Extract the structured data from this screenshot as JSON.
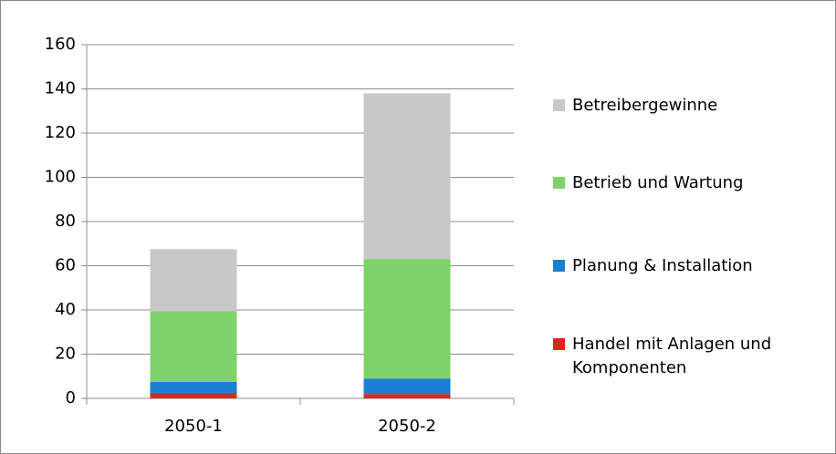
{
  "chart_data": {
    "type": "stacked_bar",
    "categories": [
      "2050-1",
      "2050-2"
    ],
    "series": [
      {
        "name": "Handel mit Anlagen und Komponenten",
        "color": "#d42a1a",
        "values": [
          2.5,
          2
        ]
      },
      {
        "name": "Planung & Installation",
        "color": "#1a7fd0",
        "values": [
          5,
          7
        ]
      },
      {
        "name": "Betrieb und Wartung",
        "color": "#7dd36a",
        "values": [
          32,
          54
        ]
      },
      {
        "name": "Betreibergewinne",
        "color": "#c8c8c8",
        "values": [
          28,
          75
        ]
      }
    ],
    "ylim": [
      0,
      160
    ],
    "yticks": [
      0,
      20,
      40,
      60,
      80,
      100,
      120,
      140,
      160
    ],
    "grid": true
  }
}
